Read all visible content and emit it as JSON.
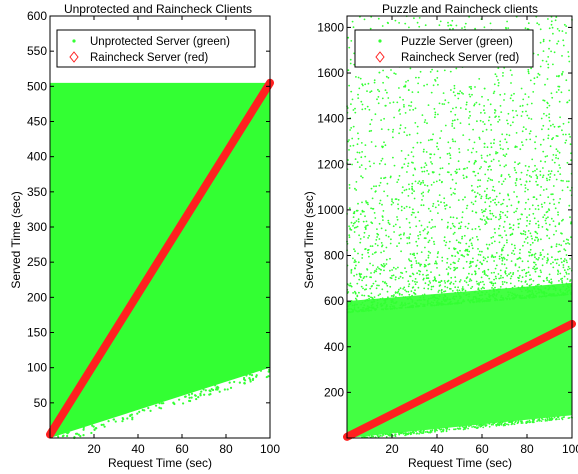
{
  "colors": {
    "green": "#33ff33",
    "red": "#ff2020",
    "frame": "#000000"
  },
  "chart_data": [
    {
      "type": "scatter",
      "title": "Unprotected and Raincheck Clients",
      "xlabel": "Request Time (sec)",
      "ylabel": "Served Time (sec)",
      "xlim": [
        0,
        100
      ],
      "ylim": [
        0,
        600
      ],
      "xticks": [
        20,
        40,
        60,
        80,
        100
      ],
      "yticks": [
        50,
        100,
        150,
        200,
        250,
        300,
        350,
        400,
        450,
        500,
        550,
        600
      ],
      "legend_position": "top-left",
      "series": [
        {
          "name": "Unprotected Server (green)",
          "kind": "dense-scatter",
          "color": "#33ff33",
          "region": {
            "top": [
              [
                0,
                505
              ],
              [
                100,
                505
              ]
            ],
            "bottom": [
              [
                0,
                0
              ],
              [
                100,
                100
              ]
            ]
          }
        },
        {
          "name": "Raincheck Server (red)",
          "kind": "line",
          "color": "#ff2020",
          "x": [
            0,
            100
          ],
          "y": [
            5,
            505
          ]
        }
      ]
    },
    {
      "type": "scatter",
      "title": "Puzzle and Raincheck clients",
      "xlabel": "Request Time (sec)",
      "ylabel": "Served Time (sec)",
      "xlim": [
        0,
        100
      ],
      "ylim": [
        0,
        1850
      ],
      "xticks": [
        20,
        40,
        60,
        80,
        100
      ],
      "yticks": [
        200,
        400,
        600,
        800,
        1000,
        1200,
        1400,
        1600,
        1800
      ],
      "legend_position": "top-left",
      "series": [
        {
          "name": "Puzzle Server (green)",
          "kind": "dense-scatter",
          "color": "#33ff33",
          "region": {
            "dense_top": [
              [
                0,
                600
              ],
              [
                100,
                680
              ]
            ],
            "bottom": [
              [
                0,
                0
              ],
              [
                100,
                100
              ]
            ],
            "sparse_top": 1850
          }
        },
        {
          "name": "Raincheck Server (red)",
          "kind": "line",
          "color": "#ff2020",
          "x": [
            0,
            100
          ],
          "y": [
            5,
            500
          ]
        }
      ]
    }
  ]
}
